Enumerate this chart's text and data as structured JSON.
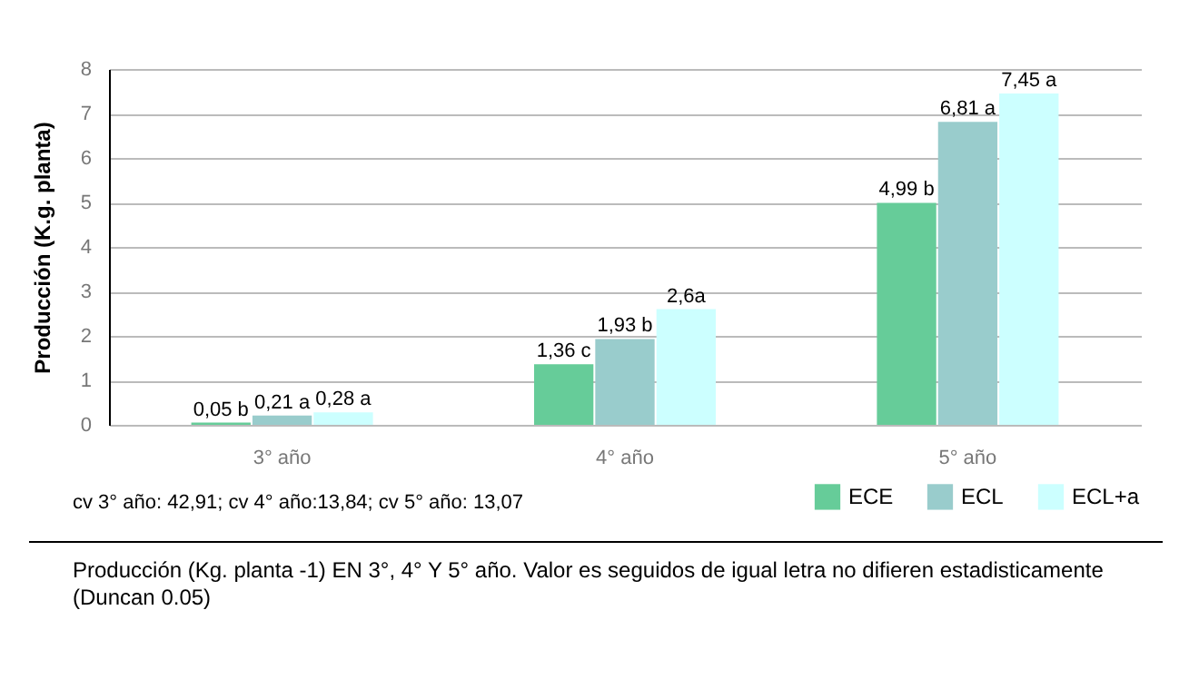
{
  "chart_data": {
    "type": "bar",
    "ylabel": "Producción (K.g. planta)",
    "categories": [
      "3° año",
      "4° año",
      "5° año"
    ],
    "series": [
      {
        "name": "ECE",
        "color": "#66cc99",
        "values": [
          0.05,
          1.36,
          4.99
        ],
        "value_labels": [
          "0,05 b",
          "1,36 c",
          "4,99 b"
        ]
      },
      {
        "name": "ECL",
        "color": "#99cccc",
        "values": [
          0.21,
          1.93,
          6.81
        ],
        "value_labels": [
          "0,21 a",
          "1,93 b",
          "6,81 a"
        ]
      },
      {
        "name": "ECL+a",
        "color": "#ccffff",
        "values": [
          0.28,
          2.6,
          7.45
        ],
        "value_labels": [
          "0,28 a",
          "2,6a",
          "7,45 a"
        ]
      }
    ],
    "ylim": [
      0,
      8
    ],
    "yticks": [
      0,
      1,
      2,
      3,
      4,
      5,
      6,
      7,
      8
    ],
    "grid": "y",
    "legend": "bottom right",
    "annotations": [
      "cv 3° año: 42,91; cv 4° año:13,84; cv 5° año: 13,07",
      "Producción (Kg. planta -1) EN 3°, 4° Y 5° año. Valor es seguidos de igual letra no difieren estadisticamente (Duncan 0.05)"
    ]
  }
}
